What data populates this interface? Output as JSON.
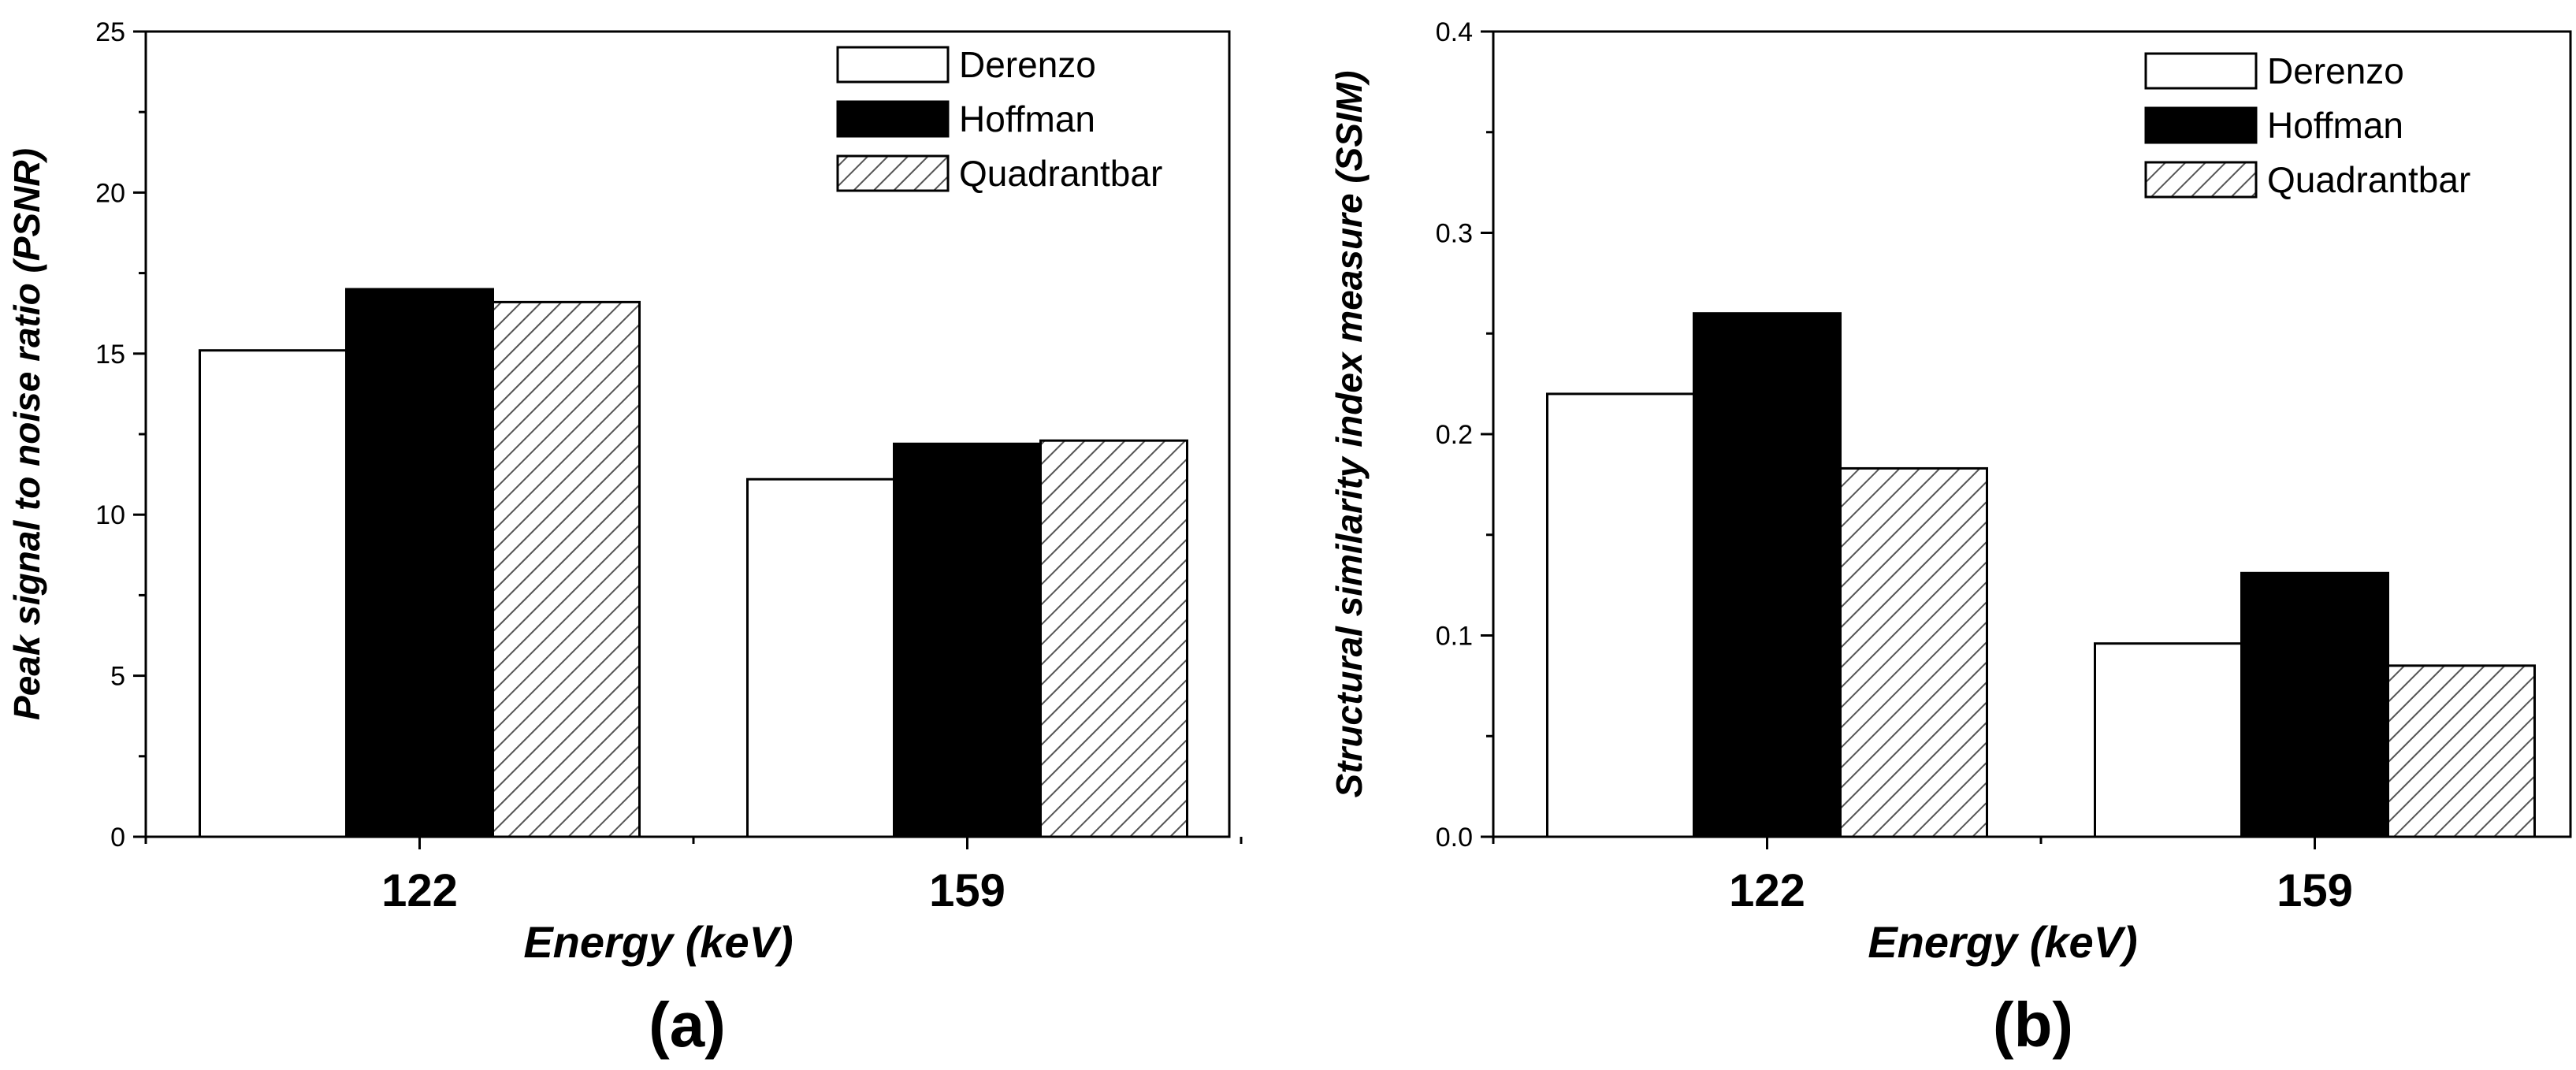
{
  "chart_data": [
    {
      "type": "bar",
      "panel_label": "(a)",
      "categories": [
        "122",
        "159"
      ],
      "series": [
        {
          "name": "Derenzo",
          "fill": "white",
          "values": [
            15.1,
            11.1
          ]
        },
        {
          "name": "Hoffman",
          "fill": "black",
          "values": [
            17.0,
            12.2
          ]
        },
        {
          "name": "Quadrantbar",
          "fill": "hatch",
          "values": [
            16.6,
            12.3
          ]
        }
      ],
      "xlabel": "Energy (keV)",
      "ylabel": "Peak signal to noise ratio (PSNR)",
      "ylim": [
        0,
        25
      ],
      "yticks": [
        0,
        5,
        10,
        15,
        20,
        25
      ],
      "ytick_labels": [
        "0",
        "5",
        "10",
        "15",
        "20",
        "25"
      ],
      "legend_position": "top-right"
    },
    {
      "type": "bar",
      "panel_label": "(b)",
      "categories": [
        "122",
        "159"
      ],
      "series": [
        {
          "name": "Derenzo",
          "fill": "white",
          "values": [
            0.22,
            0.096
          ]
        },
        {
          "name": "Hoffman",
          "fill": "black",
          "values": [
            0.26,
            0.131
          ]
        },
        {
          "name": "Quadrantbar",
          "fill": "hatch",
          "values": [
            0.183,
            0.085
          ]
        }
      ],
      "xlabel": "Energy (keV)",
      "ylabel": "Structural similarity index measure (SSIM)",
      "ylim": [
        0,
        0.4
      ],
      "yticks": [
        0,
        0.1,
        0.2,
        0.3,
        0.4
      ],
      "ytick_labels": [
        "0.0",
        "0.1",
        "0.2",
        "0.3",
        "0.4"
      ],
      "legend_position": "top-right"
    }
  ],
  "colors": {
    "axis": "#000000",
    "bar_white": "#ffffff",
    "bar_black": "#000000",
    "hatch_line": "#555555"
  }
}
